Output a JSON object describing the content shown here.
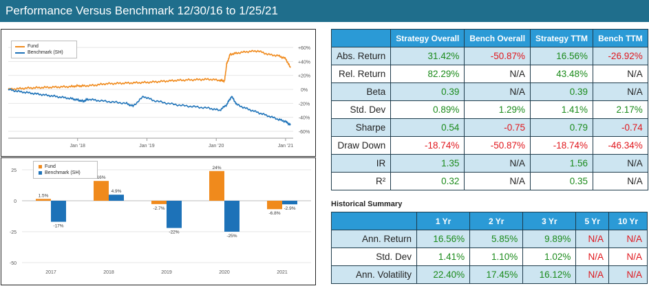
{
  "header": {
    "title": "Performance Versus Benchmark 12/30/16 to 1/25/21",
    "bg_color": "#1f6e8c"
  },
  "colors": {
    "fund": "#f08a1c",
    "benchmark": "#1d72b8",
    "positive": "#1a8a1a",
    "negative": "#e0161c",
    "header_cell": "#2b9ad6",
    "shade_row": "#cde5f1"
  },
  "line_chart": {
    "legend": {
      "fund": "Fund",
      "benchmark": "Benchmark (SH)"
    },
    "x_ticks": [
      "Jan '18",
      "Jan '19",
      "Jan '20",
      "Jan '21"
    ],
    "y_ticks": [
      "+60%",
      "+40%",
      "+20%",
      "0%",
      "-20%",
      "-40%",
      "-60%"
    ]
  },
  "bar_chart": {
    "legend": {
      "fund": "Fund",
      "benchmark": "Benchmark (SH)"
    },
    "y_ticks": [
      "25",
      "0",
      "-25",
      "-50"
    ]
  },
  "chart_data": [
    {
      "type": "line",
      "x_ticks": [
        "Jan '18",
        "Jan '19",
        "Jan '20",
        "Jan '21"
      ],
      "ylim": [
        -60,
        60
      ],
      "y_ticks": [
        60,
        40,
        20,
        0,
        -20,
        -40,
        -60
      ],
      "y_unit": "%",
      "legend_position": "top-left",
      "series": [
        {
          "name": "Fund",
          "color": "#f08a1c",
          "x": [
            2017.0,
            2017.15,
            2017.3,
            2017.45,
            2017.6,
            2017.75,
            2017.9,
            2018.0,
            2018.1,
            2018.25,
            2018.4,
            2018.55,
            2018.7,
            2018.85,
            2019.0,
            2019.15,
            2019.3,
            2019.45,
            2019.6,
            2019.75,
            2019.9,
            2020.05,
            2020.12,
            2020.15,
            2020.2,
            2020.3,
            2020.45,
            2020.6,
            2020.75,
            2020.9,
            2021.0,
            2021.07
          ],
          "y": [
            0,
            1,
            2,
            2.5,
            3,
            3.5,
            4,
            5,
            5,
            6,
            8,
            8.5,
            9,
            9.5,
            10,
            11,
            12,
            13,
            13.5,
            14,
            14.5,
            13,
            12,
            36,
            50,
            52,
            54,
            55,
            50,
            48,
            44,
            31
          ]
        },
        {
          "name": "Benchmark (SH)",
          "color": "#1d72b8",
          "x": [
            2017.0,
            2017.15,
            2017.3,
            2017.45,
            2017.6,
            2017.75,
            2017.9,
            2018.0,
            2018.08,
            2018.15,
            2018.3,
            2018.5,
            2018.7,
            2018.8,
            2018.95,
            2019.1,
            2019.3,
            2019.5,
            2019.7,
            2019.9,
            2020.05,
            2020.15,
            2020.22,
            2020.3,
            2020.45,
            2020.6,
            2020.75,
            2020.9,
            2021.0,
            2021.07
          ],
          "y": [
            0,
            -3,
            -5,
            -7,
            -9,
            -11,
            -13,
            -15,
            -17,
            -14,
            -16,
            -18,
            -20,
            -24,
            -10,
            -16,
            -20,
            -23,
            -25,
            -27,
            -30,
            -22,
            -10,
            -22,
            -28,
            -33,
            -38,
            -43,
            -46,
            -51
          ]
        }
      ]
    },
    {
      "type": "bar",
      "categories": [
        "2017",
        "2018",
        "2019",
        "2020",
        "2021"
      ],
      "ylim": [
        -50,
        30
      ],
      "y_ticks": [
        25,
        0,
        -25,
        -50
      ],
      "legend_position": "top-left",
      "series": [
        {
          "name": "Fund",
          "color": "#f08a1c",
          "values": [
            1.5,
            16,
            -2.7,
            24,
            -6.8
          ],
          "labels": [
            "1.5%",
            "16%",
            "-2.7%",
            "24%",
            "-6.8%"
          ]
        },
        {
          "name": "Benchmark (SH)",
          "color": "#1d72b8",
          "values": [
            -17,
            4.9,
            -22,
            -25,
            -2.9
          ],
          "labels": [
            "-17%",
            "4.9%",
            "-22%",
            "-25%",
            "-2.9%"
          ]
        }
      ]
    }
  ],
  "stats_table": {
    "headers": [
      "Strategy Overall",
      "Bench Overall",
      "Strategy TTM",
      "Bench TTM"
    ],
    "rows": [
      {
        "label": "Abs. Return",
        "cells": [
          {
            "v": "31.42%",
            "c": "pos"
          },
          {
            "v": "-50.87%",
            "c": "neg"
          },
          {
            "v": "16.56%",
            "c": "pos"
          },
          {
            "v": "-26.92%",
            "c": "neg"
          }
        ]
      },
      {
        "label": "Rel. Return",
        "cells": [
          {
            "v": "82.29%",
            "c": "pos"
          },
          {
            "v": "N/A",
            "c": "neu"
          },
          {
            "v": "43.48%",
            "c": "pos"
          },
          {
            "v": "N/A",
            "c": "neu"
          }
        ]
      },
      {
        "label": "Beta",
        "cells": [
          {
            "v": "0.39",
            "c": "pos"
          },
          {
            "v": "N/A",
            "c": "neu"
          },
          {
            "v": "0.39",
            "c": "pos"
          },
          {
            "v": "N/A",
            "c": "neu"
          }
        ]
      },
      {
        "label": "Std. Dev",
        "cells": [
          {
            "v": "0.89%",
            "c": "pos"
          },
          {
            "v": "1.29%",
            "c": "pos"
          },
          {
            "v": "1.41%",
            "c": "pos"
          },
          {
            "v": "2.17%",
            "c": "pos"
          }
        ]
      },
      {
        "label": "Sharpe",
        "cells": [
          {
            "v": "0.54",
            "c": "pos"
          },
          {
            "v": "-0.75",
            "c": "neg"
          },
          {
            "v": "0.79",
            "c": "pos"
          },
          {
            "v": "-0.74",
            "c": "neg"
          }
        ]
      },
      {
        "label": "Draw Down",
        "cells": [
          {
            "v": "-18.74%",
            "c": "neg"
          },
          {
            "v": "-50.87%",
            "c": "neg"
          },
          {
            "v": "-18.74%",
            "c": "neg"
          },
          {
            "v": "-46.34%",
            "c": "neg"
          }
        ]
      },
      {
        "label": "IR",
        "cells": [
          {
            "v": "1.35",
            "c": "pos"
          },
          {
            "v": "N/A",
            "c": "neu"
          },
          {
            "v": "1.56",
            "c": "pos"
          },
          {
            "v": "N/A",
            "c": "neu"
          }
        ]
      },
      {
        "label": "R²",
        "cells": [
          {
            "v": "0.32",
            "c": "pos"
          },
          {
            "v": "N/A",
            "c": "neu"
          },
          {
            "v": "0.35",
            "c": "pos"
          },
          {
            "v": "N/A",
            "c": "neu"
          }
        ]
      }
    ]
  },
  "historical_summary": {
    "title": "Historical Summary",
    "headers": [
      "1 Yr",
      "2 Yr",
      "3 Yr",
      "5 Yr",
      "10 Yr"
    ],
    "rows": [
      {
        "label": "Ann. Return",
        "cells": [
          {
            "v": "16.56%",
            "c": "pos"
          },
          {
            "v": "5.85%",
            "c": "pos"
          },
          {
            "v": "9.89%",
            "c": "pos"
          },
          {
            "v": "N/A",
            "c": "warn-na"
          },
          {
            "v": "N/A",
            "c": "warn-na"
          }
        ]
      },
      {
        "label": "Std. Dev",
        "cells": [
          {
            "v": "1.41%",
            "c": "pos"
          },
          {
            "v": "1.10%",
            "c": "pos"
          },
          {
            "v": "1.02%",
            "c": "pos"
          },
          {
            "v": "N/A",
            "c": "warn-na"
          },
          {
            "v": "N/A",
            "c": "warn-na"
          }
        ]
      },
      {
        "label": "Ann. Volatility",
        "cells": [
          {
            "v": "22.40%",
            "c": "pos"
          },
          {
            "v": "17.45%",
            "c": "pos"
          },
          {
            "v": "16.12%",
            "c": "pos"
          },
          {
            "v": "N/A",
            "c": "warn-na"
          },
          {
            "v": "N/A",
            "c": "warn-na"
          }
        ]
      }
    ]
  }
}
